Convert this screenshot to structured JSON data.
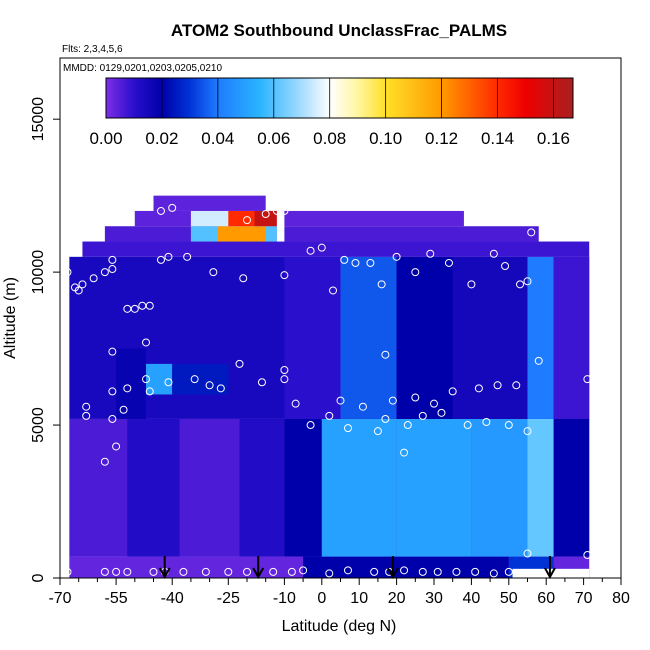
{
  "chart_data": {
    "type": "heatmap",
    "title": "ATOM2 Southbound UnclassFrac_PALMS",
    "subtitle": "Flts: 2,3,4,5,6",
    "annotation": "MMDD: 0129,0201,0203,0205,0210",
    "xlabel": "Latitude (deg N)",
    "ylabel": "Altitude (m)",
    "xlim": [
      -70,
      80
    ],
    "ylim": [
      0,
      17000
    ],
    "x_ticks": [
      -70,
      -55,
      -40,
      -25,
      -10,
      0,
      10,
      20,
      30,
      40,
      50,
      60,
      70,
      80
    ],
    "x_tick_labels": [
      "-70",
      "-55",
      "-40",
      "-25",
      "-10",
      "0",
      "10",
      "20",
      "30",
      "40",
      "50",
      "60",
      "70",
      "80"
    ],
    "x_minor_ticks": [
      -65,
      -60,
      -50,
      -45,
      -35,
      -30,
      -20,
      -15,
      -5,
      5,
      15,
      25,
      35,
      45,
      55,
      65,
      75
    ],
    "y_ticks": [
      0,
      5000,
      10000,
      15000
    ],
    "y_tick_labels": [
      "0",
      "5000",
      "10000",
      "15000"
    ],
    "colorbar": {
      "ticks": [
        0.0,
        0.02,
        0.04,
        0.06,
        0.08,
        0.1,
        0.12,
        0.14,
        0.16
      ],
      "tick_labels": [
        "0.00",
        "0.02",
        "0.04",
        "0.06",
        "0.08",
        "0.10",
        "0.12",
        "0.14",
        "0.16"
      ],
      "range": [
        0,
        0.167
      ],
      "stops": [
        {
          "v": 0.0,
          "color": "#7d2ee6"
        },
        {
          "v": 0.01,
          "color": "#2a0fcc"
        },
        {
          "v": 0.02,
          "color": "#0000aa"
        },
        {
          "v": 0.03,
          "color": "#0033d6"
        },
        {
          "v": 0.04,
          "color": "#1f7bff"
        },
        {
          "v": 0.055,
          "color": "#2ab4ff"
        },
        {
          "v": 0.07,
          "color": "#a6dcff"
        },
        {
          "v": 0.08,
          "color": "#ffffff"
        },
        {
          "v": 0.09,
          "color": "#fff6a0"
        },
        {
          "v": 0.1,
          "color": "#ffe028"
        },
        {
          "v": 0.12,
          "color": "#ff9a00"
        },
        {
          "v": 0.14,
          "color": "#ff2a00"
        },
        {
          "v": 0.15,
          "color": "#ee0000"
        },
        {
          "v": 0.167,
          "color": "#a82020"
        }
      ]
    },
    "cells": [
      {
        "x0": -67.5,
        "x1": 71.5,
        "y0": 0,
        "y1": 700,
        "v": 0.003
      },
      {
        "x0": -5,
        "x1": 50,
        "y0": 0,
        "y1": 700,
        "v": 0.02
      },
      {
        "x0": 50,
        "x1": 62,
        "y0": 0,
        "y1": 700,
        "v": 0.03
      },
      {
        "x0": -67.5,
        "x1": 71.5,
        "y0": 700,
        "y1": 5200,
        "v": 0.006
      },
      {
        "x0": -52,
        "x1": -38,
        "y0": 700,
        "y1": 5200,
        "v": 0.012
      },
      {
        "x0": -38,
        "x1": -22,
        "y0": 700,
        "y1": 5200,
        "v": 0.006
      },
      {
        "x0": -22,
        "x1": -10,
        "y0": 700,
        "y1": 5200,
        "v": 0.012
      },
      {
        "x0": -10,
        "x1": 0,
        "y0": 700,
        "y1": 5200,
        "v": 0.02
      },
      {
        "x0": 0,
        "x1": 20,
        "y0": 700,
        "y1": 5200,
        "v": 0.05
      },
      {
        "x0": 20,
        "x1": 40,
        "y0": 700,
        "y1": 5200,
        "v": 0.05
      },
      {
        "x0": 40,
        "x1": 55,
        "y0": 700,
        "y1": 5200,
        "v": 0.048
      },
      {
        "x0": 55,
        "x1": 62,
        "y0": 700,
        "y1": 5200,
        "v": 0.062
      },
      {
        "x0": 62,
        "x1": 71.5,
        "y0": 700,
        "y1": 5200,
        "v": 0.02
      },
      {
        "x0": -67.5,
        "x1": 71.5,
        "y0": 5200,
        "y1": 10500,
        "v": 0.014
      },
      {
        "x0": -55,
        "x1": -47,
        "y0": 5200,
        "y1": 7500,
        "v": 0.018
      },
      {
        "x0": -47,
        "x1": -40,
        "y0": 6000,
        "y1": 7000,
        "v": 0.05
      },
      {
        "x0": -40,
        "x1": -25,
        "y0": 6000,
        "y1": 7000,
        "v": 0.025
      },
      {
        "x0": -10,
        "x1": 5,
        "y0": 5200,
        "y1": 10500,
        "v": 0.01
      },
      {
        "x0": 5,
        "x1": 20,
        "y0": 5200,
        "y1": 10500,
        "v": 0.035
      },
      {
        "x0": 20,
        "x1": 35,
        "y0": 5200,
        "y1": 10500,
        "v": 0.02
      },
      {
        "x0": 35,
        "x1": 55,
        "y0": 5200,
        "y1": 10500,
        "v": 0.015
      },
      {
        "x0": 55,
        "x1": 62,
        "y0": 5200,
        "y1": 10500,
        "v": 0.04
      },
      {
        "x0": 62,
        "x1": 71.5,
        "y0": 5200,
        "y1": 10500,
        "v": 0.008
      },
      {
        "x0": -64,
        "x1": 71.5,
        "y0": 10500,
        "y1": 11000,
        "v": 0.008
      },
      {
        "x0": -58,
        "x1": 58,
        "y0": 11000,
        "y1": 11500,
        "v": 0.006
      },
      {
        "x0": -50,
        "x1": 38,
        "y0": 11500,
        "y1": 12000,
        "v": 0.004
      },
      {
        "x0": -35,
        "x1": -12,
        "y0": 11000,
        "y1": 11500,
        "v": 0.06
      },
      {
        "x0": -28,
        "x1": -15,
        "y0": 11000,
        "y1": 11500,
        "v": 0.12
      },
      {
        "x0": -35,
        "x1": -12,
        "y0": 11500,
        "y1": 12000,
        "v": 0.075
      },
      {
        "x0": -25,
        "x1": -18,
        "y0": 11500,
        "y1": 12000,
        "v": 0.14
      },
      {
        "x0": -18,
        "x1": -12,
        "y0": 11500,
        "y1": 12000,
        "v": 0.16
      },
      {
        "x0": -45,
        "x1": -15,
        "y0": 12000,
        "y1": 12500,
        "v": 0.004
      }
    ],
    "blank_regions": [
      {
        "x0": 51,
        "x1": 71.5,
        "y0": 0,
        "y1": 300
      },
      {
        "x0": -12,
        "x1": -10,
        "y0": 11000,
        "y1": 12000
      }
    ],
    "points": [
      [
        -68,
        200
      ],
      [
        -58,
        200
      ],
      [
        -55,
        200
      ],
      [
        -52,
        200
      ],
      [
        -45,
        200
      ],
      [
        -42,
        200
      ],
      [
        -37,
        200
      ],
      [
        -31,
        200
      ],
      [
        -25,
        200
      ],
      [
        -20,
        200
      ],
      [
        -13,
        200
      ],
      [
        -8,
        200
      ],
      [
        -5,
        250
      ],
      [
        2,
        150
      ],
      [
        7,
        250
      ],
      [
        14,
        200
      ],
      [
        18,
        200
      ],
      [
        22,
        250
      ],
      [
        27,
        200
      ],
      [
        31,
        200
      ],
      [
        36,
        200
      ],
      [
        41,
        200
      ],
      [
        46,
        150
      ],
      [
        50,
        200
      ],
      [
        55,
        800
      ],
      [
        71,
        750
      ],
      [
        -58,
        3800
      ],
      [
        -55,
        4300
      ],
      [
        -53,
        5500
      ],
      [
        -56,
        5200
      ],
      [
        -56,
        6100
      ],
      [
        -52,
        6200
      ],
      [
        -47,
        6500
      ],
      [
        -46,
        6100
      ],
      [
        -41,
        6400
      ],
      [
        -34,
        6500
      ],
      [
        -30,
        6300
      ],
      [
        -27,
        6200
      ],
      [
        -22,
        7000
      ],
      [
        -16,
        6400
      ],
      [
        -10,
        6500
      ],
      [
        -10,
        6800
      ],
      [
        -7,
        5700
      ],
      [
        -3,
        5000
      ],
      [
        2,
        5300
      ],
      [
        5,
        5800
      ],
      [
        7,
        4900
      ],
      [
        11,
        5600
      ],
      [
        15,
        4800
      ],
      [
        17,
        5200
      ],
      [
        19,
        5800
      ],
      [
        22,
        4100
      ],
      [
        23,
        5000
      ],
      [
        25,
        5900
      ],
      [
        27,
        5300
      ],
      [
        30,
        5700
      ],
      [
        32,
        5400
      ],
      [
        35,
        6100
      ],
      [
        39,
        5000
      ],
      [
        42,
        6200
      ],
      [
        44,
        5100
      ],
      [
        47,
        6300
      ],
      [
        50,
        5000
      ],
      [
        52,
        6300
      ],
      [
        55,
        4800
      ],
      [
        58,
        7100
      ],
      [
        71,
        6500
      ],
      [
        -56,
        7400
      ],
      [
        -47,
        7700
      ],
      [
        17,
        7300
      ],
      [
        -66,
        9500
      ],
      [
        -64,
        9600
      ],
      [
        -61,
        9800
      ],
      [
        -58,
        10000
      ],
      [
        -56,
        10100
      ],
      [
        -56,
        10400
      ],
      [
        -52,
        8800
      ],
      [
        -50,
        8800
      ],
      [
        -48,
        8900
      ],
      [
        -46,
        8900
      ],
      [
        -43,
        10400
      ],
      [
        -41,
        10500
      ],
      [
        -36,
        10500
      ],
      [
        -29,
        10000
      ],
      [
        -21,
        9800
      ],
      [
        -10,
        9900
      ],
      [
        -3,
        10700
      ],
      [
        0,
        10800
      ],
      [
        3,
        9400
      ],
      [
        6,
        10400
      ],
      [
        9,
        10300
      ],
      [
        13,
        10300
      ],
      [
        16,
        9600
      ],
      [
        20,
        10500
      ],
      [
        25,
        10000
      ],
      [
        29,
        10600
      ],
      [
        34,
        10300
      ],
      [
        40,
        9600
      ],
      [
        46,
        10600
      ],
      [
        49,
        10200
      ],
      [
        53,
        9600
      ],
      [
        55,
        9700
      ],
      [
        56,
        11300
      ],
      [
        60,
        11200
      ],
      [
        -68,
        10000
      ],
      [
        -65,
        9400
      ],
      [
        -43,
        12000
      ],
      [
        -40,
        12100
      ],
      [
        -20,
        11700
      ],
      [
        -15,
        11900
      ],
      [
        -12,
        12000
      ],
      [
        -10,
        12000
      ],
      [
        -63,
        5600
      ],
      [
        -63,
        5300
      ]
    ],
    "arrows_latitude": [
      -42,
      -17,
      19,
      61
    ]
  }
}
